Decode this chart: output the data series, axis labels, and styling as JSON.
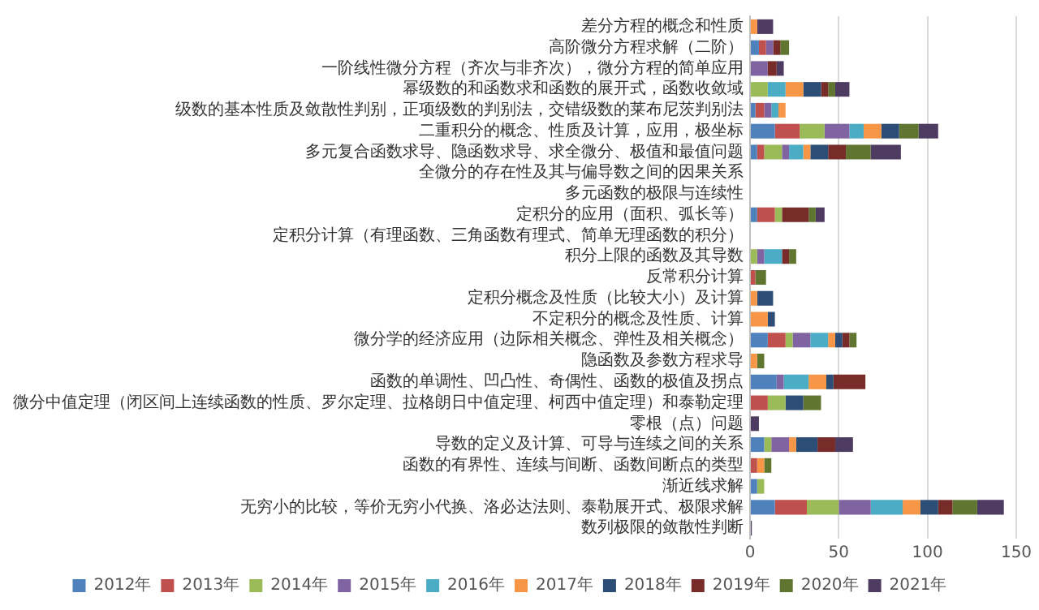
{
  "chart_data": {
    "type": "bar",
    "orientation": "horizontal",
    "stacked": true,
    "grid": "x",
    "legend": "bottom",
    "categories": [
      "差分方程的概念和性质",
      "高阶微分方程求解（二阶）",
      "一阶线性微分方程（齐次与非齐次），微分方程的简单应用",
      "幂级数的和函数求和函数的展开式，函数收敛域",
      "级数的基本性质及敛散性判别，正项级数的判别法，交错级数的莱布尼茨判别法",
      "二重积分的概念、性质及计算，应用，极坐标",
      "多元复合函数求导、隐函数求导、求全微分、极值和最值问题",
      "全微分的存在性及其与偏导数之间的因果关系",
      "多元函数的极限与连续性",
      "定积分的应用（面积、弧长等）",
      "定积分计算（有理函数、三角函数有理式、简单无理函数的积分）",
      "积分上限的函数及其导数",
      "反常积分计算",
      "定积分概念及性质（比较大小）及计算",
      "不定积分的概念及性质、计算",
      "微分学的经济应用（边际相关概念、弹性及相关概念）",
      "隐函数及参数方程求导",
      "函数的单调性、凹凸性、奇偶性、函数的极值及拐点",
      "微分中值定理（闭区间上连续函数的性质、罗尔定理、拉格朗日中值定理、柯西中值定理）和泰勒定理",
      "零根（点）问题",
      "导数的定义及计算、可导与连续之间的关系",
      "函数的有界性、连续与间断、函数间断点的类型",
      "渐近线求解",
      "无穷小的比较，等价无穷小代换、洛必达法则、泰勒展开式、极限求解",
      "数列极限的敛散性判断"
    ],
    "xlim": [
      0,
      150
    ],
    "xticks": [
      0,
      50,
      100,
      150
    ],
    "series": [
      {
        "name": "2012年",
        "color": "#4f81bd",
        "values": [
          null,
          5,
          null,
          null,
          3,
          14,
          4,
          null,
          null,
          4,
          null,
          null,
          null,
          null,
          null,
          10,
          null,
          15,
          null,
          null,
          8,
          null,
          4,
          14,
          null
        ]
      },
      {
        "name": "2013年",
        "color": "#c0504d",
        "values": [
          null,
          4,
          null,
          null,
          5,
          14,
          4,
          null,
          null,
          10,
          null,
          null,
          3,
          null,
          null,
          10,
          null,
          null,
          10,
          null,
          null,
          4,
          null,
          18,
          null
        ]
      },
      {
        "name": "2014年",
        "color": "#9bbb59",
        "values": [
          null,
          null,
          null,
          10,
          null,
          14,
          10,
          null,
          null,
          4,
          null,
          4,
          null,
          null,
          null,
          4,
          null,
          null,
          10,
          null,
          4,
          null,
          4,
          18,
          null
        ]
      },
      {
        "name": "2015年",
        "color": "#8064a2",
        "values": [
          null,
          4,
          10,
          null,
          4,
          14,
          4,
          null,
          null,
          null,
          null,
          4,
          null,
          null,
          null,
          10,
          null,
          4,
          null,
          null,
          10,
          null,
          null,
          18,
          null
        ]
      },
      {
        "name": "2016年",
        "color": "#4bacc6",
        "values": [
          null,
          null,
          null,
          10,
          4,
          8,
          8,
          null,
          null,
          null,
          null,
          10,
          null,
          null,
          null,
          10,
          null,
          14,
          null,
          null,
          null,
          null,
          null,
          18,
          null
        ]
      },
      {
        "name": "2017年",
        "color": "#f79646",
        "values": [
          4,
          null,
          null,
          10,
          4,
          10,
          4,
          null,
          null,
          null,
          null,
          null,
          null,
          4,
          10,
          4,
          4,
          10,
          null,
          null,
          4,
          4,
          null,
          10,
          null
        ]
      },
      {
        "name": "2018年",
        "color": "#2c4d75",
        "values": [
          null,
          null,
          null,
          10,
          null,
          10,
          10,
          null,
          null,
          null,
          null,
          null,
          null,
          9,
          4,
          4,
          null,
          4,
          10,
          null,
          12,
          null,
          null,
          10,
          null
        ]
      },
      {
        "name": "2019年",
        "color": "#772c2a",
        "values": [
          null,
          4,
          5,
          4,
          null,
          null,
          10,
          null,
          null,
          15,
          null,
          4,
          null,
          null,
          null,
          4,
          null,
          18,
          null,
          null,
          10,
          null,
          null,
          8,
          null
        ]
      },
      {
        "name": "2020年",
        "color": "#5f7530",
        "values": [
          null,
          5,
          null,
          4,
          null,
          11,
          14,
          null,
          null,
          4,
          null,
          4,
          6,
          null,
          null,
          4,
          4,
          null,
          10,
          null,
          null,
          4,
          null,
          14,
          null
        ]
      },
      {
        "name": "2021年",
        "color": "#4d3b62",
        "values": [
          9,
          null,
          4,
          8,
          null,
          11,
          17,
          null,
          null,
          5,
          null,
          null,
          null,
          null,
          null,
          null,
          null,
          null,
          null,
          5,
          10,
          null,
          null,
          15,
          1
        ]
      }
    ]
  }
}
